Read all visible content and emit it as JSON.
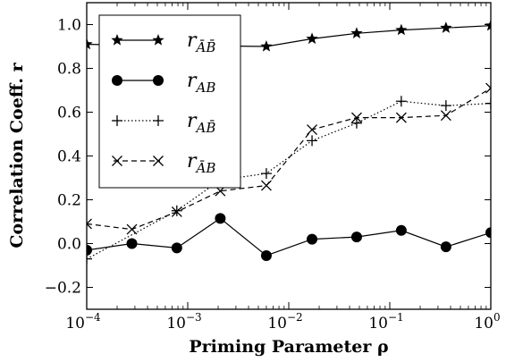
{
  "chart_data": {
    "type": "line",
    "xlabel": "Priming Parameter ρ",
    "ylabel": "Correlation Coeff. r",
    "xscale": "log",
    "xlim": [
      0.0001,
      1
    ],
    "ylim": [
      -0.3,
      1.1
    ],
    "x_ticks": [
      0.0001,
      0.001,
      0.01,
      0.1,
      1
    ],
    "x_tick_labels": [
      {
        "base": "10",
        "exp": "−4"
      },
      {
        "base": "10",
        "exp": "−3"
      },
      {
        "base": "10",
        "exp": "−2"
      },
      {
        "base": "10",
        "exp": "−1"
      },
      {
        "base": "10",
        "exp": "0"
      }
    ],
    "y_ticks": [
      -0.2,
      0.0,
      0.2,
      0.4,
      0.6,
      0.8,
      1.0
    ],
    "y_tick_labels": [
      "−0.2",
      "0.0",
      "0.2",
      "0.4",
      "0.6",
      "0.8",
      "1.0"
    ],
    "legend_position": "top-left",
    "grid": false,
    "x": [
      0.0001,
      0.00028,
      0.00078,
      0.0021,
      0.006,
      0.017,
      0.047,
      0.13,
      0.36,
      1.0
    ],
    "series": [
      {
        "name": "r",
        "sub": "ĀB̄",
        "marker": "star",
        "line": "solid",
        "values": [
          0.91,
          null,
          null,
          null,
          0.9,
          0.935,
          0.96,
          0.975,
          0.985,
          0.995
        ]
      },
      {
        "name": "r",
        "sub": "AB",
        "marker": "circle",
        "line": "solid",
        "values": [
          -0.03,
          0.0,
          -0.02,
          0.115,
          -0.055,
          0.02,
          0.03,
          0.06,
          -0.015,
          0.05
        ]
      },
      {
        "name": "r",
        "sub": "AB̄",
        "marker": "plus",
        "line": "dotted",
        "values": [
          -0.07,
          null,
          0.15,
          0.29,
          0.32,
          0.47,
          0.55,
          0.65,
          0.63,
          0.64
        ]
      },
      {
        "name": "r",
        "sub": "ĀB",
        "marker": "x",
        "line": "dashed",
        "values": [
          0.09,
          0.065,
          0.145,
          0.24,
          0.265,
          0.52,
          0.575,
          0.575,
          0.585,
          0.71
        ]
      }
    ]
  }
}
